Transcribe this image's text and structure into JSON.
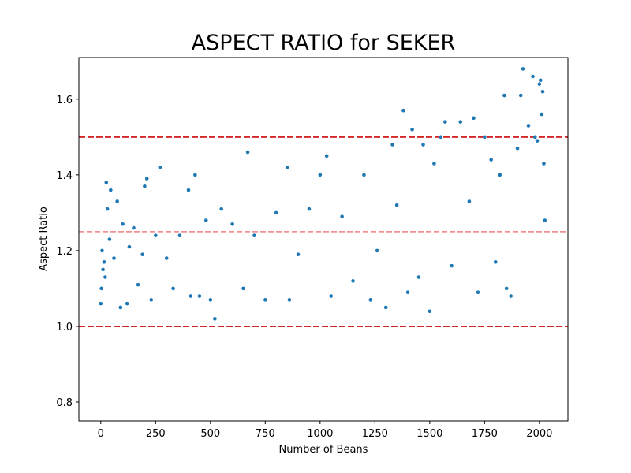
{
  "chart_data": {
    "type": "scatter",
    "title": "ASPECT RATIO for SEKER",
    "xlabel": "Number of Beans",
    "ylabel": "Aspect Ratio",
    "xlim": [
      -100,
      2130
    ],
    "ylim": [
      0.75,
      1.71
    ],
    "xticks": [
      0,
      250,
      500,
      750,
      1000,
      1250,
      1500,
      1750,
      2000
    ],
    "yticks": [
      0.8,
      1.0,
      1.2,
      1.4,
      1.6
    ],
    "ytick_labels": [
      "0.8",
      "1.0",
      "1.2",
      "1.4",
      "1.6"
    ],
    "grid": false,
    "point_color": "#1f77b4",
    "reference_lines": [
      {
        "y": 1.5,
        "style": "dashed",
        "color": "#d62728"
      },
      {
        "y": 1.25,
        "style": "dashed",
        "color": "#f08080"
      },
      {
        "y": 1.0,
        "style": "dashed",
        "color": "#d62728"
      }
    ],
    "series": [
      {
        "points": [
          [
            0,
            1.06
          ],
          [
            3,
            1.1
          ],
          [
            6,
            1.2
          ],
          [
            10,
            1.15
          ],
          [
            15,
            1.17
          ],
          [
            20,
            1.13
          ],
          [
            25,
            1.38
          ],
          [
            30,
            1.31
          ],
          [
            40,
            1.23
          ],
          [
            45,
            1.36
          ],
          [
            60,
            1.18
          ],
          [
            75,
            1.33
          ],
          [
            90,
            1.05
          ],
          [
            100,
            1.27
          ],
          [
            120,
            1.06
          ],
          [
            130,
            1.21
          ],
          [
            150,
            1.26
          ],
          [
            170,
            1.11
          ],
          [
            190,
            1.19
          ],
          [
            200,
            1.37
          ],
          [
            210,
            1.39
          ],
          [
            230,
            1.07
          ],
          [
            250,
            1.24
          ],
          [
            270,
            1.42
          ],
          [
            300,
            1.18
          ],
          [
            330,
            1.1
          ],
          [
            360,
            1.24
          ],
          [
            400,
            1.36
          ],
          [
            410,
            1.08
          ],
          [
            430,
            1.4
          ],
          [
            450,
            1.08
          ],
          [
            480,
            1.28
          ],
          [
            500,
            1.07
          ],
          [
            520,
            1.02
          ],
          [
            550,
            1.31
          ],
          [
            600,
            1.27
          ],
          [
            650,
            1.1
          ],
          [
            670,
            1.46
          ],
          [
            700,
            1.24
          ],
          [
            750,
            1.07
          ],
          [
            800,
            1.3
          ],
          [
            850,
            1.42
          ],
          [
            860,
            1.07
          ],
          [
            900,
            1.19
          ],
          [
            950,
            1.31
          ],
          [
            1000,
            1.4
          ],
          [
            1030,
            1.45
          ],
          [
            1050,
            1.08
          ],
          [
            1100,
            1.29
          ],
          [
            1150,
            1.12
          ],
          [
            1200,
            1.4
          ],
          [
            1230,
            1.07
          ],
          [
            1260,
            1.2
          ],
          [
            1300,
            1.05
          ],
          [
            1330,
            1.48
          ],
          [
            1350,
            1.32
          ],
          [
            1380,
            1.57
          ],
          [
            1400,
            1.09
          ],
          [
            1420,
            1.52
          ],
          [
            1450,
            1.13
          ],
          [
            1470,
            1.48
          ],
          [
            1500,
            1.04
          ],
          [
            1520,
            1.43
          ],
          [
            1550,
            1.5
          ],
          [
            1570,
            1.54
          ],
          [
            1600,
            1.16
          ],
          [
            1640,
            1.54
          ],
          [
            1680,
            1.33
          ],
          [
            1700,
            1.55
          ],
          [
            1720,
            1.09
          ],
          [
            1750,
            1.5
          ],
          [
            1780,
            1.44
          ],
          [
            1800,
            1.17
          ],
          [
            1820,
            1.4
          ],
          [
            1840,
            1.61
          ],
          [
            1850,
            1.1
          ],
          [
            1870,
            1.08
          ],
          [
            1900,
            1.47
          ],
          [
            1915,
            1.61
          ],
          [
            1925,
            1.68
          ],
          [
            1950,
            1.53
          ],
          [
            1970,
            1.66
          ],
          [
            1980,
            1.5
          ],
          [
            1990,
            1.49
          ],
          [
            2000,
            1.64
          ],
          [
            2005,
            1.65
          ],
          [
            2010,
            1.56
          ],
          [
            2015,
            1.62
          ],
          [
            2020,
            1.43
          ],
          [
            2025,
            1.28
          ]
        ]
      }
    ]
  }
}
